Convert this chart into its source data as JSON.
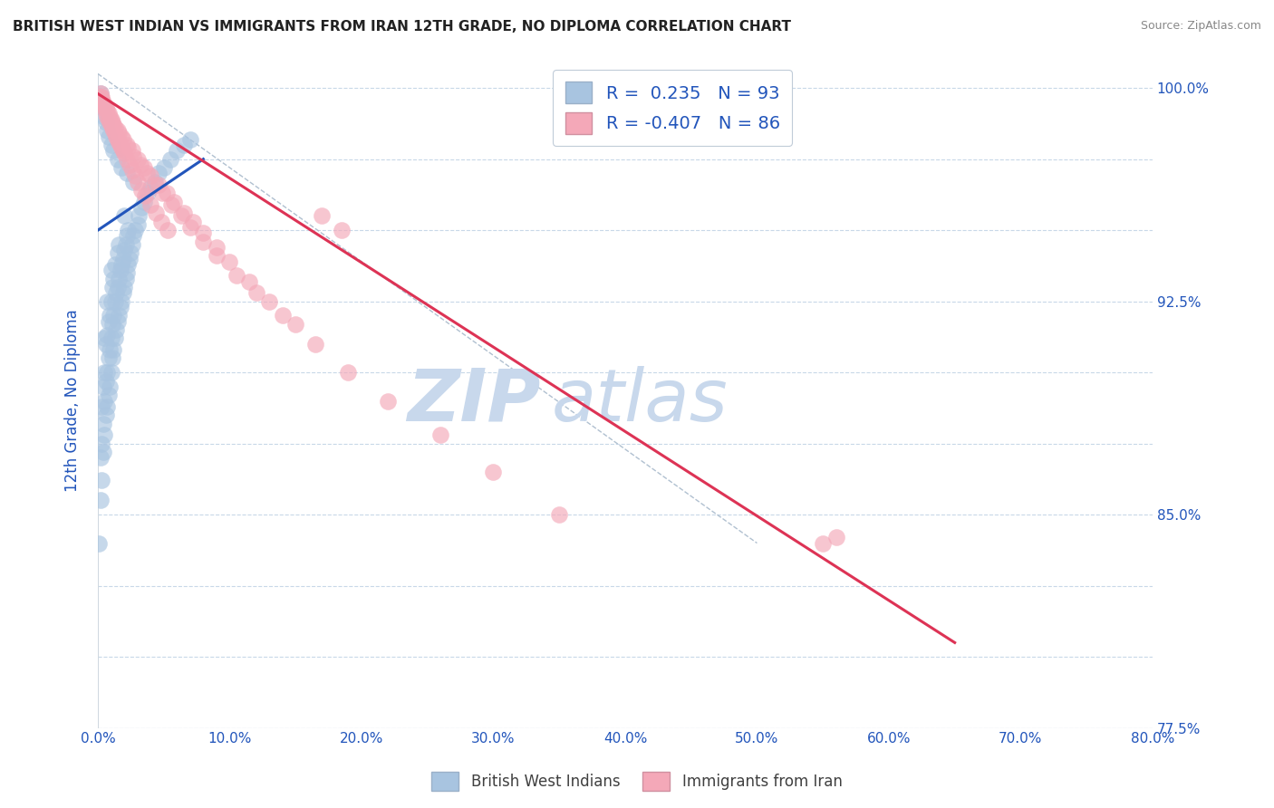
{
  "title": "BRITISH WEST INDIAN VS IMMIGRANTS FROM IRAN 12TH GRADE, NO DIPLOMA CORRELATION CHART",
  "source": "Source: ZipAtlas.com",
  "ylabel": "12th Grade, No Diploma",
  "xlim": [
    0.0,
    0.8
  ],
  "ylim": [
    0.775,
    1.005
  ],
  "yticks": [
    0.775,
    0.8,
    0.825,
    0.85,
    0.875,
    0.9,
    0.925,
    0.95,
    0.975,
    1.0
  ],
  "xticks": [
    0.0,
    0.1,
    0.2,
    0.3,
    0.4,
    0.5,
    0.6,
    0.7,
    0.8
  ],
  "xtick_labels": [
    "0.0%",
    "10.0%",
    "20.0%",
    "30.0%",
    "40.0%",
    "50.0%",
    "60.0%",
    "70.0%",
    "80.0%"
  ],
  "blue_R": 0.235,
  "blue_N": 93,
  "pink_R": -0.407,
  "pink_N": 86,
  "blue_color": "#a8c4e0",
  "pink_color": "#f4a8b8",
  "blue_line_color": "#2255bb",
  "pink_line_color": "#dd3355",
  "watermark_text": "ZIP",
  "watermark_text2": "atlas",
  "watermark_color": "#c8d8ec",
  "legend_label_blue": "British West Indians",
  "legend_label_pink": "Immigrants from Iran",
  "blue_scatter_x": [
    0.001,
    0.002,
    0.002,
    0.003,
    0.003,
    0.003,
    0.004,
    0.004,
    0.004,
    0.005,
    0.005,
    0.005,
    0.005,
    0.006,
    0.006,
    0.006,
    0.007,
    0.007,
    0.007,
    0.007,
    0.008,
    0.008,
    0.008,
    0.009,
    0.009,
    0.009,
    0.01,
    0.01,
    0.01,
    0.01,
    0.011,
    0.011,
    0.011,
    0.012,
    0.012,
    0.012,
    0.013,
    0.013,
    0.013,
    0.014,
    0.014,
    0.015,
    0.015,
    0.015,
    0.016,
    0.016,
    0.016,
    0.017,
    0.017,
    0.018,
    0.018,
    0.019,
    0.019,
    0.02,
    0.02,
    0.02,
    0.021,
    0.021,
    0.022,
    0.022,
    0.023,
    0.023,
    0.024,
    0.025,
    0.026,
    0.027,
    0.028,
    0.03,
    0.031,
    0.033,
    0.035,
    0.038,
    0.04,
    0.043,
    0.046,
    0.05,
    0.055,
    0.06,
    0.065,
    0.07,
    0.002,
    0.003,
    0.004,
    0.005,
    0.006,
    0.007,
    0.008,
    0.01,
    0.012,
    0.015,
    0.018,
    0.022,
    0.027
  ],
  "blue_scatter_y": [
    0.84,
    0.855,
    0.87,
    0.862,
    0.875,
    0.888,
    0.872,
    0.882,
    0.895,
    0.878,
    0.89,
    0.9,
    0.912,
    0.885,
    0.897,
    0.91,
    0.888,
    0.9,
    0.913,
    0.925,
    0.892,
    0.905,
    0.918,
    0.895,
    0.908,
    0.92,
    0.9,
    0.912,
    0.925,
    0.936,
    0.905,
    0.917,
    0.93,
    0.908,
    0.92,
    0.933,
    0.912,
    0.925,
    0.938,
    0.915,
    0.928,
    0.918,
    0.93,
    0.942,
    0.92,
    0.933,
    0.945,
    0.923,
    0.936,
    0.925,
    0.938,
    0.928,
    0.94,
    0.93,
    0.943,
    0.955,
    0.933,
    0.945,
    0.935,
    0.948,
    0.938,
    0.95,
    0.94,
    0.942,
    0.945,
    0.948,
    0.95,
    0.952,
    0.955,
    0.958,
    0.96,
    0.963,
    0.965,
    0.967,
    0.97,
    0.972,
    0.975,
    0.978,
    0.98,
    0.982,
    0.998,
    0.995,
    0.993,
    0.99,
    0.988,
    0.985,
    0.983,
    0.98,
    0.978,
    0.975,
    0.972,
    0.97,
    0.967
  ],
  "pink_scatter_x": [
    0.002,
    0.003,
    0.004,
    0.005,
    0.006,
    0.007,
    0.008,
    0.009,
    0.01,
    0.011,
    0.012,
    0.013,
    0.014,
    0.015,
    0.016,
    0.017,
    0.018,
    0.019,
    0.02,
    0.022,
    0.024,
    0.026,
    0.028,
    0.03,
    0.033,
    0.036,
    0.04,
    0.044,
    0.048,
    0.053,
    0.002,
    0.004,
    0.006,
    0.008,
    0.01,
    0.012,
    0.015,
    0.018,
    0.022,
    0.026,
    0.03,
    0.035,
    0.04,
    0.046,
    0.052,
    0.058,
    0.065,
    0.072,
    0.08,
    0.09,
    0.1,
    0.115,
    0.13,
    0.15,
    0.003,
    0.005,
    0.007,
    0.009,
    0.011,
    0.013,
    0.016,
    0.019,
    0.023,
    0.027,
    0.032,
    0.037,
    0.043,
    0.049,
    0.056,
    0.063,
    0.07,
    0.08,
    0.09,
    0.105,
    0.12,
    0.14,
    0.165,
    0.19,
    0.22,
    0.26,
    0.3,
    0.35,
    0.17,
    0.185,
    0.55,
    0.56
  ],
  "pink_scatter_y": [
    0.998,
    0.996,
    0.994,
    0.993,
    0.991,
    0.99,
    0.989,
    0.988,
    0.987,
    0.986,
    0.985,
    0.984,
    0.983,
    0.982,
    0.981,
    0.98,
    0.979,
    0.978,
    0.977,
    0.975,
    0.973,
    0.971,
    0.969,
    0.967,
    0.964,
    0.962,
    0.959,
    0.956,
    0.953,
    0.95,
    0.997,
    0.995,
    0.993,
    0.991,
    0.989,
    0.987,
    0.985,
    0.983,
    0.98,
    0.978,
    0.975,
    0.972,
    0.969,
    0.966,
    0.963,
    0.96,
    0.956,
    0.953,
    0.949,
    0.944,
    0.939,
    0.932,
    0.925,
    0.917,
    0.997,
    0.994,
    0.992,
    0.99,
    0.988,
    0.986,
    0.984,
    0.982,
    0.979,
    0.976,
    0.973,
    0.97,
    0.966,
    0.963,
    0.959,
    0.955,
    0.951,
    0.946,
    0.941,
    0.934,
    0.928,
    0.92,
    0.91,
    0.9,
    0.89,
    0.878,
    0.865,
    0.85,
    0.955,
    0.95,
    0.84,
    0.842
  ],
  "blue_line_x": [
    0.0,
    0.08
  ],
  "blue_line_y": [
    0.95,
    0.975
  ],
  "pink_line_x": [
    0.0,
    0.65
  ],
  "pink_line_y": [
    0.998,
    0.805
  ],
  "diag_line_x": [
    0.0,
    0.5
  ],
  "diag_line_y": [
    1.005,
    0.84
  ],
  "right_ytick_labels": [
    "100.0%",
    "92.5%",
    "85.0%",
    "77.5%"
  ],
  "right_ytick_positions": [
    1.0,
    0.925,
    0.85,
    0.775
  ],
  "grid_color": "#c8d8e8",
  "grid_linestyle": "--"
}
